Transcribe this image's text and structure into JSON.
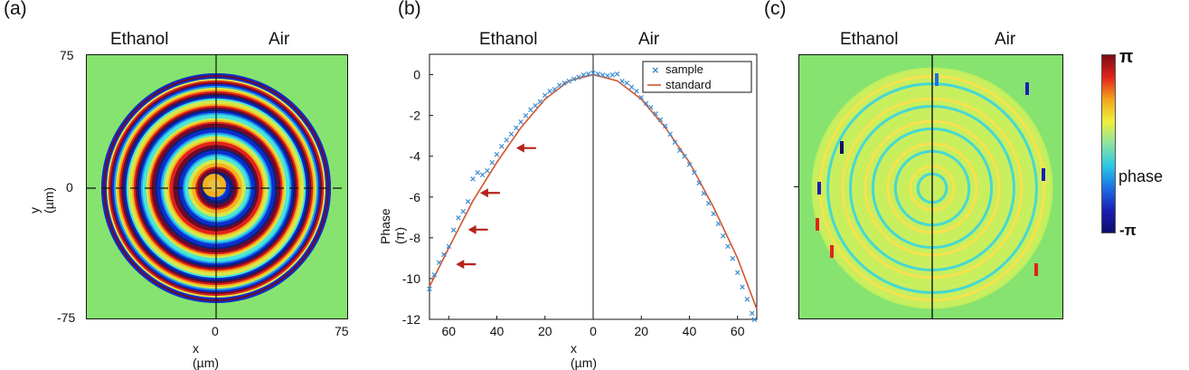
{
  "chart_data": [
    {
      "panel": "(a)",
      "type": "heatmap",
      "headers": [
        "Ethanol",
        "Air"
      ],
      "xlabel": "x (µm)",
      "ylabel": "y (µm)",
      "xlim": [
        -75,
        75
      ],
      "ylim": [
        -75,
        75
      ],
      "x_ticks": [
        "0",
        "75"
      ],
      "y_ticks": [
        "75",
        "0",
        "-75"
      ],
      "ring_colors": [
        "#0b2fcf",
        "#1f9ff0",
        "#49e6d8",
        "#d6e84c",
        "#f5b21b",
        "#e2221b",
        "#6d0a2a",
        "#0b1f7a"
      ]
    },
    {
      "panel": "(b)",
      "type": "scatter",
      "headers": [
        "Ethanol",
        "Air"
      ],
      "xlabel": "x (µm)",
      "ylabel": "Phase (π)",
      "xlim": [
        -68,
        68
      ],
      "ylim": [
        -12,
        1
      ],
      "x_ticks": [
        {
          "v": -60,
          "t": "60"
        },
        {
          "v": -40,
          "t": "40"
        },
        {
          "v": -20,
          "t": "20"
        },
        {
          "v": 0,
          "t": "0"
        },
        {
          "v": 20,
          "t": "20"
        },
        {
          "v": 40,
          "t": "40"
        },
        {
          "v": 60,
          "t": "60"
        }
      ],
      "y_ticks": [
        0,
        -2,
        -4,
        -6,
        -8,
        -10,
        -12
      ],
      "legend": {
        "position": "top-right",
        "items": [
          "sample",
          "standard"
        ]
      },
      "series": [
        {
          "name": "standard",
          "color": "#d2552e",
          "x": [
            -68,
            -60,
            -50,
            -40,
            -30,
            -20,
            -10,
            0,
            10,
            20,
            30,
            40,
            50,
            60,
            68
          ],
          "y": [
            -10.4,
            -8.5,
            -6.2,
            -4.3,
            -2.6,
            -1.2,
            -0.3,
            0,
            -0.3,
            -1.2,
            -2.6,
            -4.3,
            -6.5,
            -9.0,
            -11.5
          ]
        },
        {
          "name": "sample",
          "color": "#3f8fd2",
          "x": [
            -68,
            -66,
            -64,
            -62,
            -60,
            -58,
            -56,
            -54,
            -52,
            -50,
            -48,
            -46,
            -44,
            -42,
            -40,
            -38,
            -36,
            -34,
            -32,
            -30,
            -28,
            -26,
            -24,
            -22,
            -20,
            -18,
            -16,
            -14,
            -12,
            -10,
            -8,
            -6,
            -4,
            -2,
            0,
            2,
            4,
            6,
            8,
            10,
            12,
            14,
            16,
            18,
            20,
            22,
            24,
            26,
            28,
            30,
            32,
            34,
            36,
            38,
            40,
            42,
            44,
            46,
            48,
            50,
            52,
            54,
            56,
            58,
            60,
            62,
            64,
            66,
            67
          ],
          "y": [
            -10.5,
            -9.8,
            -9.2,
            -8.8,
            -8.4,
            -7.6,
            -7.0,
            -6.7,
            -6.2,
            -5.1,
            -4.8,
            -4.9,
            -4.7,
            -4.3,
            -3.9,
            -3.5,
            -3.2,
            -2.9,
            -2.6,
            -2.3,
            -2.0,
            -1.7,
            -1.5,
            -1.3,
            -1.0,
            -0.8,
            -0.7,
            -0.5,
            -0.4,
            -0.3,
            -0.2,
            -0.1,
            0.0,
            0.05,
            0.1,
            0.05,
            0.0,
            -0.05,
            0.0,
            0.05,
            -0.3,
            -0.4,
            -0.6,
            -0.8,
            -1.1,
            -1.4,
            -1.6,
            -1.9,
            -2.2,
            -2.5,
            -2.9,
            -3.3,
            -3.7,
            -4.0,
            -4.4,
            -4.8,
            -5.3,
            -5.8,
            -6.3,
            -6.8,
            -7.3,
            -7.9,
            -8.4,
            -9.0,
            -9.7,
            -10.4,
            -11.0,
            -11.7,
            -12.0
          ]
        }
      ],
      "annotations": {
        "arrow_color": "#b5231c",
        "arrows_at": [
          {
            "x": -32,
            "y": -3.6
          },
          {
            "x": -47,
            "y": -5.8
          },
          {
            "x": -52,
            "y": -7.6
          },
          {
            "x": -57,
            "y": -9.3
          }
        ]
      }
    },
    {
      "panel": "(c)",
      "type": "heatmap",
      "headers": [
        "Ethanol",
        "Air"
      ],
      "colorbar": {
        "top": "π",
        "middle": "phase",
        "bottom": "-π",
        "colors": [
          "#7a0d14",
          "#e2221b",
          "#f5a41c",
          "#eef03c",
          "#8ae3a0",
          "#2bc8e6",
          "#1c6fe5",
          "#1a1fb3",
          "#0c0d6a"
        ]
      },
      "ring_colors": [
        "#c6ee5c",
        "#ffe14a",
        "#2fd4e6"
      ]
    }
  ]
}
